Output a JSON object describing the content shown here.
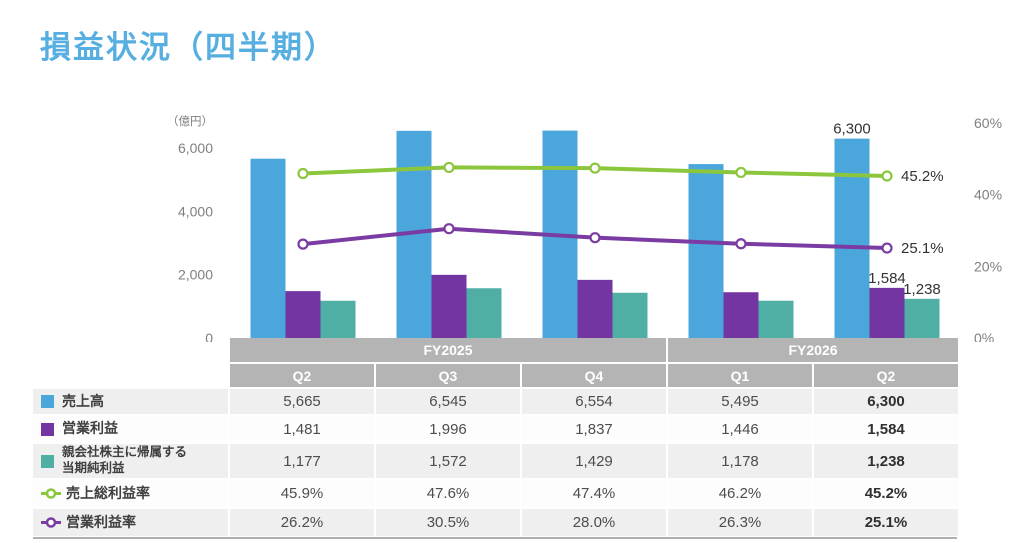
{
  "page": {
    "title": "損益状況（四半期）",
    "title_color": "#57AEE0"
  },
  "chart_data": {
    "type": "combo-bar-line",
    "unit_label": "（億円）",
    "groups": [
      {
        "label": "FY2025",
        "quarters": [
          "Q2",
          "Q3",
          "Q4"
        ]
      },
      {
        "label": "FY2026",
        "quarters": [
          "Q1",
          "Q2"
        ]
      }
    ],
    "bar_series": [
      {
        "name": "売上高",
        "color": "#4BA6DB",
        "values": [
          5665,
          6545,
          6554,
          5495,
          6300
        ],
        "last_label": "6,300"
      },
      {
        "name": "営業利益",
        "color": "#7335A2",
        "values": [
          1481,
          1996,
          1837,
          1446,
          1584
        ],
        "last_label": "1,584"
      },
      {
        "name": "親会社株主に帰属する当期純利益",
        "color": "#4FAFA5",
        "values": [
          1177,
          1572,
          1429,
          1178,
          1238
        ],
        "last_label": "1,238"
      }
    ],
    "line_series": [
      {
        "name": "売上総利益率",
        "color": "#8CC63C",
        "values": [
          45.9,
          47.6,
          47.4,
          46.2,
          45.2
        ],
        "last_label": "45.2%"
      },
      {
        "name": "営業利益率",
        "color": "#7A3CA3",
        "values": [
          26.2,
          30.5,
          28.0,
          26.3,
          25.1
        ],
        "last_label": "25.1%"
      }
    ],
    "left_axis": {
      "ticks": [
        "0",
        "2,000",
        "4,000",
        "6,000"
      ],
      "values": [
        0,
        2000,
        4000,
        6000
      ]
    },
    "right_axis": {
      "ticks": [
        "0%",
        "20%",
        "40%",
        "60%"
      ],
      "values": [
        0,
        20,
        40,
        60
      ]
    },
    "legend_position": "table-left-column",
    "grid": false
  },
  "table": {
    "header_bg": "#b4b4b4",
    "fiscal_years": [
      {
        "label": "FY2025",
        "colspan": 3
      },
      {
        "label": "FY2026",
        "colspan": 2
      }
    ],
    "quarters": [
      "Q2",
      "Q3",
      "Q4",
      "Q1",
      "Q2"
    ],
    "rows": [
      {
        "label": "売上高",
        "legend": "square",
        "color": "#4BA6DB",
        "values": [
          "5,665",
          "6,545",
          "6,554",
          "5,495",
          "6,300"
        ]
      },
      {
        "label": "営業利益",
        "legend": "square",
        "color": "#7335A2",
        "values": [
          "1,481",
          "1,996",
          "1,837",
          "1,446",
          "1,584"
        ]
      },
      {
        "label": "親会社株主に帰属する\n当期純利益",
        "legend": "square",
        "color": "#4FAFA5",
        "values": [
          "1,177",
          "1,572",
          "1,429",
          "1,178",
          "1,238"
        ]
      },
      {
        "label": "売上総利益率",
        "legend": "line",
        "color": "#8CC63C",
        "values": [
          "45.9%",
          "47.6%",
          "47.4%",
          "46.2%",
          "45.2%"
        ]
      },
      {
        "label": "営業利益率",
        "legend": "line",
        "color": "#7A3CA3",
        "values": [
          "26.2%",
          "30.5%",
          "28.0%",
          "26.3%",
          "25.1%"
        ]
      }
    ],
    "bold_last_column": true
  }
}
